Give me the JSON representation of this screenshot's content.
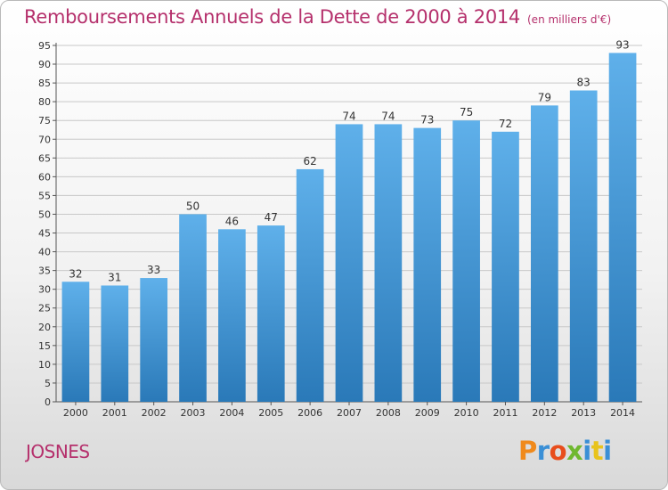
{
  "header": {
    "title": "Remboursements Annuels de la Dette de 2000 à 2014",
    "subtitle": "(en milliers d'€)"
  },
  "footer": {
    "town": "JOSNES",
    "logo_text": "Proxiti",
    "logo_colors": [
      "#f08a1c",
      "#3a8fd6",
      "#e84d1c",
      "#6fb82f",
      "#3a8fd6",
      "#e8c31c",
      "#3a8fd6"
    ]
  },
  "colors": {
    "accent": "#b5306c",
    "bar_top": "#5fb0ea",
    "bar_bottom": "#2a79b8"
  },
  "chart_data": {
    "type": "bar",
    "title": "Remboursements Annuels de la Dette de 2000 à 2014",
    "subtitle": "(en milliers d'€)",
    "xlabel": "",
    "ylabel": "",
    "categories": [
      "2000",
      "2001",
      "2002",
      "2003",
      "2004",
      "2005",
      "2006",
      "2007",
      "2008",
      "2009",
      "2010",
      "2011",
      "2012",
      "2013",
      "2014"
    ],
    "values": [
      32,
      31,
      33,
      50,
      46,
      47,
      62,
      74,
      74,
      73,
      75,
      72,
      79,
      83,
      93
    ],
    "ylim": [
      0,
      95
    ],
    "yticks": [
      0,
      5,
      10,
      15,
      20,
      25,
      30,
      35,
      40,
      45,
      50,
      55,
      60,
      65,
      70,
      75,
      80,
      85,
      90,
      95
    ],
    "grid": true,
    "data_labels": true
  }
}
